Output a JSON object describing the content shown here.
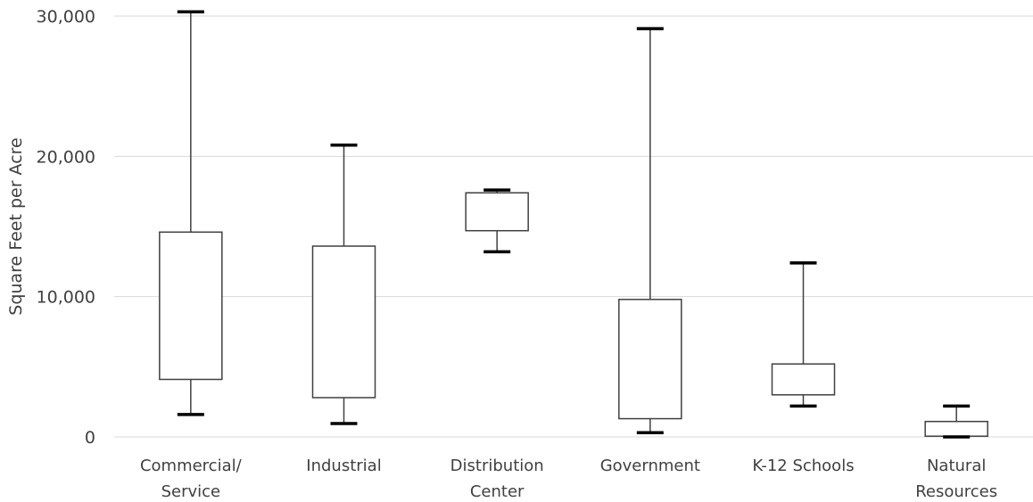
{
  "chart_data": {
    "type": "box",
    "ylabel": "Square Feet per Acre",
    "ylim": [
      0,
      30000
    ],
    "yticks": [
      0,
      10000,
      20000,
      30000
    ],
    "ytick_labels": [
      "0",
      "10,000",
      "20,000",
      "30,000"
    ],
    "grid": true,
    "categories": [
      {
        "lines": [
          "Commercial/",
          "Service"
        ]
      },
      {
        "lines": [
          "Industrial"
        ]
      },
      {
        "lines": [
          "Distribution",
          "Center"
        ]
      },
      {
        "lines": [
          "Government"
        ]
      },
      {
        "lines": [
          "K-12 Schools"
        ]
      },
      {
        "lines": [
          "Natural",
          "Resources"
        ]
      }
    ],
    "boxes": [
      {
        "min": 1600,
        "q1": 4100,
        "q3": 14600,
        "max": 30300
      },
      {
        "min": 950,
        "q1": 2800,
        "q3": 13600,
        "max": 20800
      },
      {
        "min": 13200,
        "q1": 14700,
        "q3": 17400,
        "max": 17600
      },
      {
        "min": 300,
        "q1": 1300,
        "q3": 9800,
        "max": 29100
      },
      {
        "min": 2200,
        "q1": 3000,
        "q3": 5200,
        "max": 12400
      },
      {
        "min": 0,
        "q1": 50,
        "q3": 1100,
        "max": 2200
      }
    ],
    "colors": {
      "box_stroke": "#404040",
      "cap": "#000000",
      "grid": "#d9d9d9",
      "text": "#404040"
    }
  }
}
